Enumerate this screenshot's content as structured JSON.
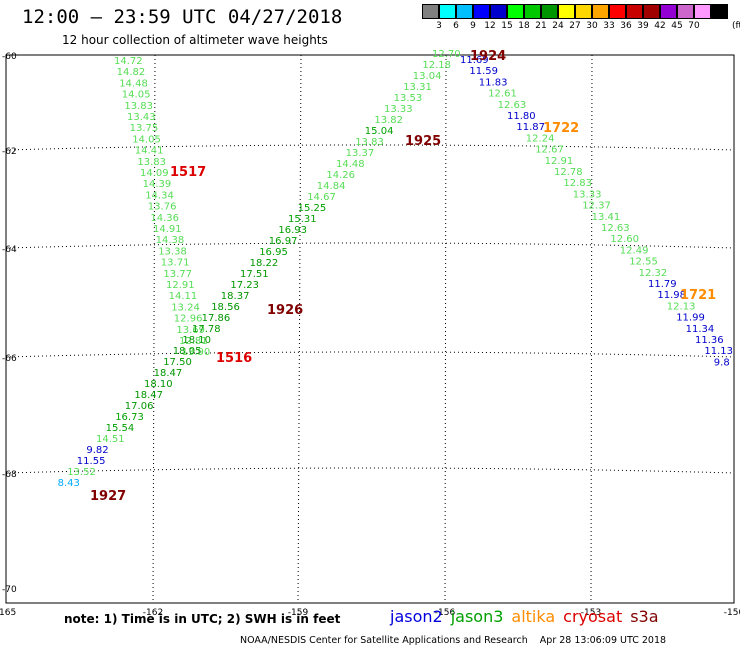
{
  "header": {
    "title": "12:00 — 23:59 UTC 04/27/2018",
    "subtitle": "12 hour collection of altimeter wave heights"
  },
  "scale": {
    "unit": "(ft)",
    "colors": [
      "#808080",
      "#00ffff",
      "#00bfff",
      "#0000ff",
      "#0000cd",
      "#00ff00",
      "#00c800",
      "#009600",
      "#ffff00",
      "#ffd700",
      "#ffa500",
      "#ff0000",
      "#c80000",
      "#a00000",
      "#9400d3",
      "#cc66cc",
      "#ff99ff",
      "#000000"
    ],
    "labels": [
      "3",
      "6",
      "9",
      "12",
      "15",
      "18",
      "21",
      "24",
      "27",
      "30",
      "33",
      "36",
      "39",
      "42",
      "45",
      "70"
    ]
  },
  "axes": {
    "lon_labels": [
      "-165",
      "-162",
      "-159",
      "-156",
      "-153",
      "-150"
    ],
    "lat_labels": [
      "-60",
      "-62",
      "-64",
      "-66",
      "-68",
      "-70"
    ]
  },
  "track_labels": [
    {
      "text": "1517",
      "color": "#dd0000",
      "lon": -160.8,
      "lat": -62.4
    },
    {
      "text": "1516",
      "color": "#dd0000",
      "lon": -160.8,
      "lat": -66.0
    },
    {
      "text": "1926",
      "color": "#800000",
      "lon": -158.9,
      "lat": -65.2
    },
    {
      "text": "1927",
      "color": "#800000",
      "lon": -163.7,
      "lat": -68.5
    },
    {
      "text": "1925",
      "color": "#800000",
      "lon": -154.9,
      "lat": -61.85
    },
    {
      "text": "1924",
      "color": "#800000",
      "lon": -154.45,
      "lat": -60.0
    },
    {
      "text": "1722",
      "color": "#ff8c00",
      "lon": -152.7,
      "lat": -61.6
    },
    {
      "text": "1721",
      "color": "#ff8c00",
      "lon": -150.9,
      "lat": -64.8
    }
  ],
  "measurements": [
    {
      "v": "14.72",
      "c": "#55dd55",
      "lon": -163.45,
      "lat": -60.15
    },
    {
      "v": "14.82",
      "c": "#55dd55",
      "lon": -163.4,
      "lat": -60.35
    },
    {
      "v": "14.48",
      "c": "#55dd55",
      "lon": -163.35,
      "lat": -60.55
    },
    {
      "v": "14.05",
      "c": "#55dd55",
      "lon": -163.3,
      "lat": -60.75
    },
    {
      "v": "13.83",
      "c": "#55dd55",
      "lon": -163.25,
      "lat": -60.95
    },
    {
      "v": "13.43",
      "c": "#55dd55",
      "lon": -163.2,
      "lat": -61.15
    },
    {
      "v": "13.75",
      "c": "#55dd55",
      "lon": -163.15,
      "lat": -61.35
    },
    {
      "v": "14.05",
      "c": "#55dd55",
      "lon": -163.1,
      "lat": -61.55
    },
    {
      "v": "14.41",
      "c": "#55dd55",
      "lon": -163.05,
      "lat": -61.75
    },
    {
      "v": "13.83",
      "c": "#55dd55",
      "lon": -163.0,
      "lat": -61.95
    },
    {
      "v": "14.09",
      "c": "#55dd55",
      "lon": -162.95,
      "lat": -62.15
    },
    {
      "v": "14.39",
      "c": "#55dd55",
      "lon": -162.9,
      "lat": -62.35
    },
    {
      "v": "14.34",
      "c": "#55dd55",
      "lon": -162.85,
      "lat": -62.55
    },
    {
      "v": "13.76",
      "c": "#55dd55",
      "lon": -162.8,
      "lat": -62.75
    },
    {
      "v": "14.36",
      "c": "#55dd55",
      "lon": -162.75,
      "lat": -62.95
    },
    {
      "v": "14.91",
      "c": "#55dd55",
      "lon": -162.7,
      "lat": -63.15
    },
    {
      "v": "14.38",
      "c": "#55dd55",
      "lon": -162.65,
      "lat": -63.35
    },
    {
      "v": "13.38",
      "c": "#55dd55",
      "lon": -162.6,
      "lat": -63.55
    },
    {
      "v": "13.71",
      "c": "#55dd55",
      "lon": -162.55,
      "lat": -63.75
    },
    {
      "v": "13.77",
      "c": "#55dd55",
      "lon": -162.5,
      "lat": -63.95
    },
    {
      "v": "12.91",
      "c": "#55dd55",
      "lon": -162.45,
      "lat": -64.15
    },
    {
      "v": "14.11",
      "c": "#55dd55",
      "lon": -162.4,
      "lat": -64.35
    },
    {
      "v": "13.24",
      "c": "#55dd55",
      "lon": -162.35,
      "lat": -64.55
    },
    {
      "v": "12.96",
      "c": "#55dd55",
      "lon": -162.3,
      "lat": -64.75
    },
    {
      "v": "13.69",
      "c": "#55dd55",
      "lon": -162.25,
      "lat": -64.95
    },
    {
      "v": "12.81",
      "c": "#55dd55",
      "lon": -162.2,
      "lat": -65.15
    },
    {
      "v": "13.90",
      "c": "#55dd55",
      "lon": -162.15,
      "lat": -65.35
    },
    {
      "v": "12.70",
      "c": "#55dd55",
      "lon": -156.4,
      "lat": -60.0
    },
    {
      "v": "12.18",
      "c": "#55dd55",
      "lon": -156.5,
      "lat": -60.2
    },
    {
      "v": "13.04",
      "c": "#55dd55",
      "lon": -156.55,
      "lat": -60.4
    },
    {
      "v": "13.31",
      "c": "#55dd55",
      "lon": -156.65,
      "lat": -60.6
    },
    {
      "v": "13.53",
      "c": "#55dd55",
      "lon": -156.75,
      "lat": -60.8
    },
    {
      "v": "13.33",
      "c": "#55dd55",
      "lon": -156.85,
      "lat": -61.0
    },
    {
      "v": "13.82",
      "c": "#55dd55",
      "lon": -156.95,
      "lat": -61.2
    },
    {
      "v": "15.04",
      "c": "#00a000",
      "lon": -157.0,
      "lat": -61.4
    },
    {
      "v": "13.83",
      "c": "#55dd55",
      "lon": -157.2,
      "lat": -61.6
    },
    {
      "v": "13.37",
      "c": "#55dd55",
      "lon": -157.3,
      "lat": -61.8
    },
    {
      "v": "14.48",
      "c": "#55dd55",
      "lon": -157.4,
      "lat": -62.0
    },
    {
      "v": "14.26",
      "c": "#55dd55",
      "lon": -157.5,
      "lat": -62.2
    },
    {
      "v": "14.84",
      "c": "#55dd55",
      "lon": -157.6,
      "lat": -62.4
    },
    {
      "v": "14.67",
      "c": "#55dd55",
      "lon": -157.7,
      "lat": -62.6
    },
    {
      "v": "15.25",
      "c": "#00a000",
      "lon": -157.8,
      "lat": -62.8
    },
    {
      "v": "15.31",
      "c": "#00a000",
      "lon": -157.9,
      "lat": -63.0
    },
    {
      "v": "16.93",
      "c": "#00a000",
      "lon": -158.0,
      "lat": -63.2
    },
    {
      "v": "16.97",
      "c": "#00a000",
      "lon": -158.1,
      "lat": -63.4
    },
    {
      "v": "16.95",
      "c": "#00a000",
      "lon": -158.2,
      "lat": -63.6
    },
    {
      "v": "18.22",
      "c": "#009600",
      "lon": -158.3,
      "lat": -63.8
    },
    {
      "v": "17.51",
      "c": "#009600",
      "lon": -158.4,
      "lat": -64.0
    },
    {
      "v": "17.23",
      "c": "#009600",
      "lon": -158.5,
      "lat": -64.2
    },
    {
      "v": "18.37",
      "c": "#009600",
      "lon": -158.6,
      "lat": -64.4
    },
    {
      "v": "18.56",
      "c": "#009600",
      "lon": -158.7,
      "lat": -64.6
    },
    {
      "v": "17.86",
      "c": "#009600",
      "lon": -158.8,
      "lat": -64.8
    },
    {
      "v": "17.78",
      "c": "#009600",
      "lon": -158.9,
      "lat": -65.0
    },
    {
      "v": "18.10",
      "c": "#009600",
      "lon": -159.0,
      "lat": -65.2
    },
    {
      "v": "18.05",
      "c": "#009600",
      "lon": -159.1,
      "lat": -65.4
    },
    {
      "v": "17.50",
      "c": "#009600",
      "lon": -159.2,
      "lat": -65.6
    },
    {
      "v": "18.47",
      "c": "#009600",
      "lon": -159.3,
      "lat": -65.8
    },
    {
      "v": "18.10",
      "c": "#009600",
      "lon": -159.4,
      "lat": -66.0
    },
    {
      "v": "18.47",
      "c": "#009600",
      "lon": -159.5,
      "lat": -66.2
    },
    {
      "v": "17.06",
      "c": "#009600",
      "lon": -159.6,
      "lat": -66.4
    },
    {
      "v": "16.73",
      "c": "#00a000",
      "lon": -159.7,
      "lat": -66.6
    },
    {
      "v": "15.54",
      "c": "#00a000",
      "lon": -159.8,
      "lat": -66.8
    },
    {
      "v": "14.51",
      "c": "#55dd55",
      "lon": -159.9,
      "lat": -67.0
    },
    {
      "v": "9.82",
      "c": "#0000cc",
      "lon": -160.0,
      "lat": -67.2
    },
    {
      "v": "11.55",
      "c": "#0000cc",
      "lon": -160.1,
      "lat": -67.4
    },
    {
      "v": "13.52",
      "c": "#55dd55",
      "lon": -160.2,
      "lat": -67.6
    },
    {
      "v": "8.43",
      "c": "#00aaff",
      "lon": -160.3,
      "lat": -67.8
    },
    {
      "v": "11.69",
      "c": "#0000cc",
      "lon": -156.2,
      "lat": -60.1
    },
    {
      "v": "11.59",
      "c": "#0000cc",
      "lon": -156.1,
      "lat": -60.3
    },
    {
      "v": "11.83",
      "c": "#0000cc",
      "lon": -156.0,
      "lat": -60.5
    },
    {
      "v": "12.61",
      "c": "#55dd55",
      "lon": -155.9,
      "lat": -60.7
    },
    {
      "v": "12.63",
      "c": "#55dd55",
      "lon": -155.8,
      "lat": -60.9
    },
    {
      "v": "11.80",
      "c": "#0000cc",
      "lon": -155.7,
      "lat": -61.1
    },
    {
      "v": "11.87",
      "c": "#0000cc",
      "lon": -155.6,
      "lat": -61.3
    },
    {
      "v": "12.24",
      "c": "#55dd55",
      "lon": -155.5,
      "lat": -61.5
    },
    {
      "v": "12.67",
      "c": "#55dd55",
      "lon": -155.4,
      "lat": -61.7
    },
    {
      "v": "12.91",
      "c": "#55dd55",
      "lon": -155.3,
      "lat": -61.9
    },
    {
      "v": "12.78",
      "c": "#55dd55",
      "lon": -155.2,
      "lat": -62.1
    },
    {
      "v": "12.83",
      "c": "#55dd55",
      "lon": -155.1,
      "lat": -62.3
    },
    {
      "v": "13.33",
      "c": "#55dd55",
      "lon": -155.0,
      "lat": -62.5
    },
    {
      "v": "12.37",
      "c": "#55dd55",
      "lon": -154.9,
      "lat": -62.7
    },
    {
      "v": "13.41",
      "c": "#55dd55",
      "lon": -154.8,
      "lat": -62.9
    },
    {
      "v": "12.63",
      "c": "#55dd55",
      "lon": -154.7,
      "lat": -63.1
    },
    {
      "v": "12.60",
      "c": "#55dd55",
      "lon": -154.6,
      "lat": -63.3
    },
    {
      "v": "12.49",
      "c": "#55dd55",
      "lon": -154.5,
      "lat": -63.5
    },
    {
      "v": "12.55",
      "c": "#55dd55",
      "lon": -154.4,
      "lat": -63.7
    },
    {
      "v": "12.32",
      "c": "#55dd55",
      "lon": -154.3,
      "lat": -63.9
    },
    {
      "v": "11.79",
      "c": "#0000cc",
      "lon": -154.2,
      "lat": -64.1
    },
    {
      "v": "11.98",
      "c": "#0000cc",
      "lon": -154.1,
      "lat": -64.3
    },
    {
      "v": "12.13",
      "c": "#55dd55",
      "lon": -154.0,
      "lat": -64.5
    },
    {
      "v": "11.99",
      "c": "#0000cc",
      "lon": -153.9,
      "lat": -64.7
    },
    {
      "v": "11.34",
      "c": "#0000cc",
      "lon": -153.8,
      "lat": -64.9
    },
    {
      "v": "11.36",
      "c": "#0000cc",
      "lon": -153.7,
      "lat": -65.1
    },
    {
      "v": "11.13",
      "c": "#0000cc",
      "lon": -153.6,
      "lat": -65.3
    },
    {
      "v": "9.8",
      "c": "#0000cc",
      "lon": -153.5,
      "lat": -65.5
    }
  ],
  "note": "note: 1) Time is in UTC; 2) SWH is in feet",
  "legend": [
    {
      "name": "jason2",
      "color": "#0000dd"
    },
    {
      "name": "jason3",
      "color": "#00a000"
    },
    {
      "name": "altika",
      "color": "#ff8c00"
    },
    {
      "name": "cryosat",
      "color": "#dd0000"
    },
    {
      "name": "s3a",
      "color": "#800000"
    }
  ],
  "footer": "NOAA/NESDIS Center for Satellite Applications and Research    Apr 28 13:06:09 UTC 2018"
}
